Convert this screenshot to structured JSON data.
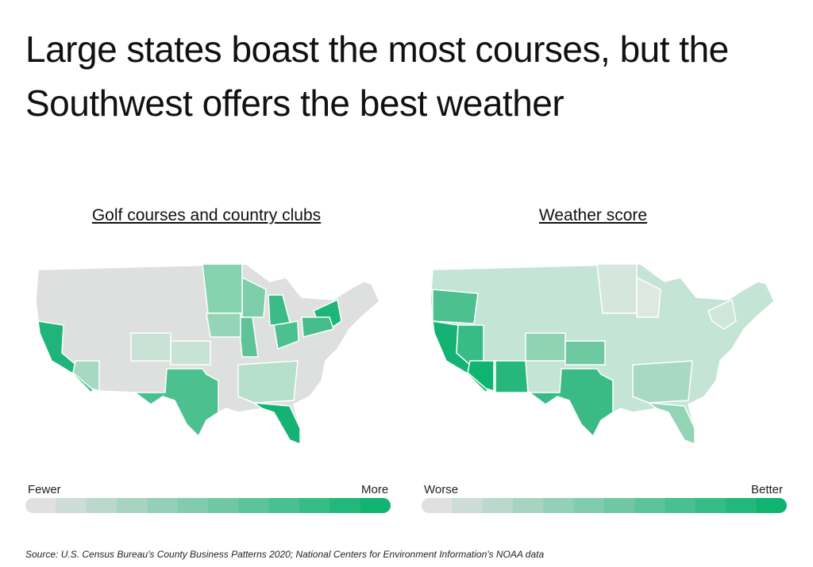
{
  "header": {
    "title": "Large states boast the most courses, but the Southwest offers the best weather"
  },
  "maps": [
    {
      "title": "Golf courses and country clubs",
      "legend": {
        "low": "Fewer",
        "high": "More"
      }
    },
    {
      "title": "Weather score",
      "legend": {
        "low": "Worse",
        "high": "Better"
      }
    }
  ],
  "source": "Source:  U.S. Census Bureau's County Business Patterns 2020; National Centers for Environment Information's NOAA data"
}
